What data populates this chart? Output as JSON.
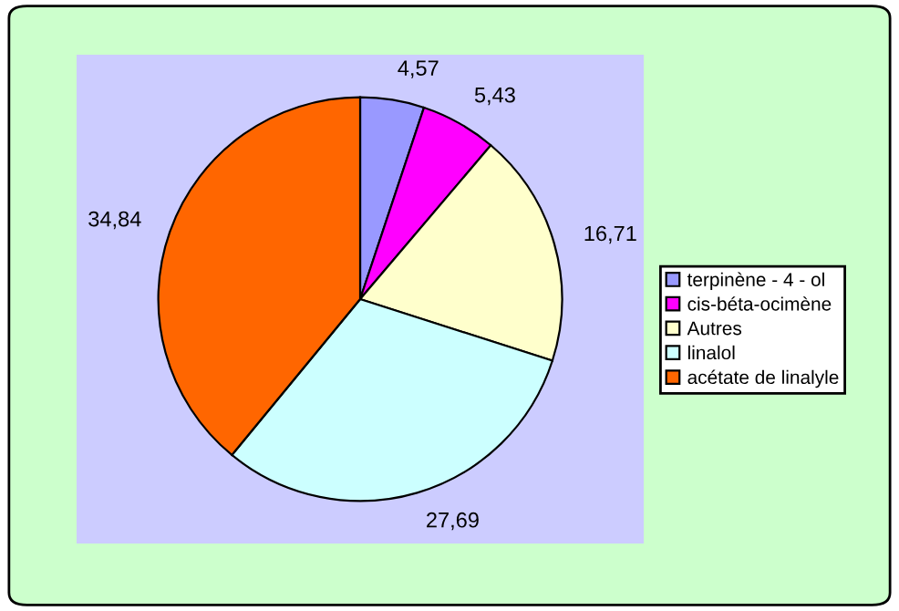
{
  "chart_data": {
    "type": "pie",
    "categories": [
      "terpinène - 4 - ol",
      "cis-béta-ocimène",
      "Autres",
      "linalol",
      "acétate de linalyle"
    ],
    "values": [
      4.57,
      5.43,
      16.71,
      27.69,
      34.84
    ],
    "value_labels": [
      "4,57",
      "5,43",
      "16,71",
      "27,69",
      "34,84"
    ],
    "colors": [
      "#9999ff",
      "#ff00ff",
      "#ffffcc",
      "#ccffff",
      "#ff6600"
    ],
    "legend": "right"
  }
}
